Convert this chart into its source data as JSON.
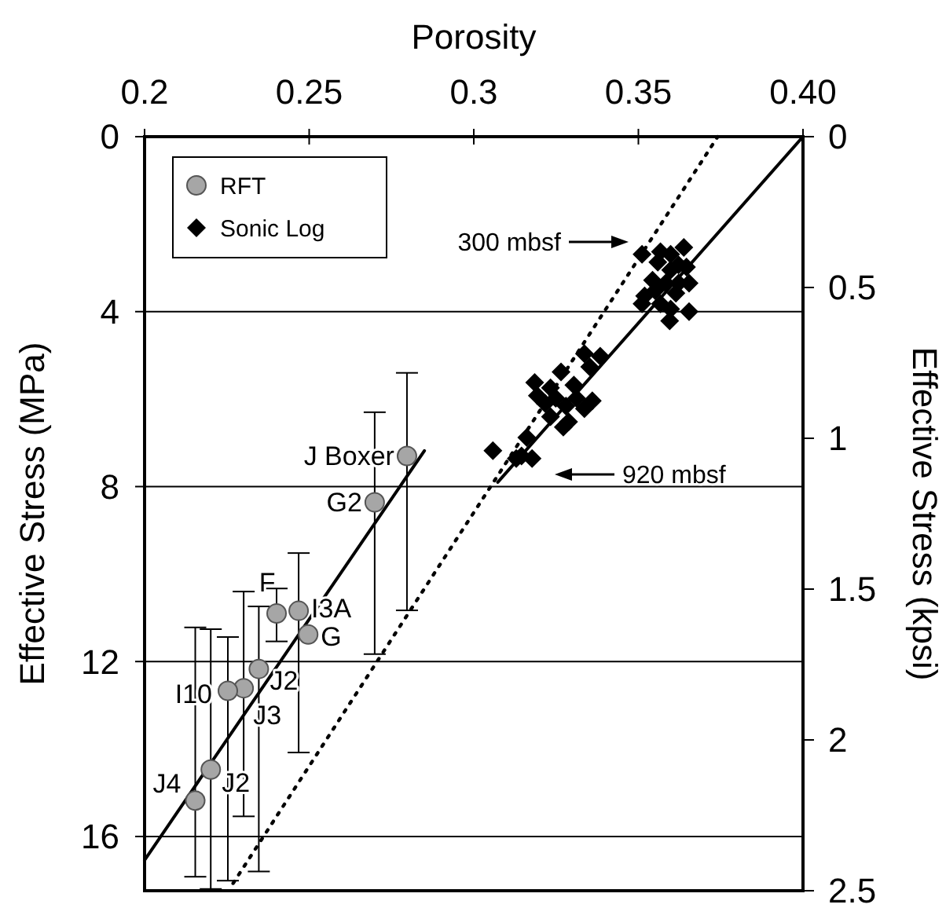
{
  "chart_data": {
    "type": "scatter",
    "xlabel": "Porosity",
    "ylabel": "Effective Stress (MPa)",
    "y2label": "Effective Stress (kpsi)",
    "xlim": [
      0.2,
      0.4
    ],
    "xticks": [
      0.2,
      0.25,
      0.3,
      0.35,
      {
        "value": 0.4,
        "label": "0.40"
      }
    ],
    "ylim": [
      17.24,
      0
    ],
    "yticks": [
      0,
      4,
      8,
      12,
      16
    ],
    "y2lim": [
      2.5,
      0
    ],
    "y2ticks": [
      0,
      0.5,
      1,
      1.5,
      2,
      2.5
    ],
    "grid": "y",
    "legend": "top left",
    "series": [
      {
        "name": "RFT",
        "marker": "circle",
        "color": "#a6a6a6",
        "x": [
          0.2797,
          0.2699,
          0.2401,
          0.2468,
          0.2497,
          0.2347,
          0.2301,
          0.2253,
          0.2154,
          0.2201
        ],
        "values": [
          7.3,
          8.36,
          10.9,
          10.84,
          11.38,
          12.17,
          12.61,
          12.67,
          15.18,
          14.47
        ],
        "errors": [
          [
            5.4,
            10.83
          ],
          [
            6.3,
            11.83
          ],
          [
            10.33,
            11.54
          ],
          [
            9.52,
            14.08
          ],
          null,
          [
            10.74,
            16.8
          ],
          [
            10.4,
            15.54
          ],
          [
            11.44,
            17.01
          ],
          [
            11.22,
            16.92
          ],
          [
            11.26,
            17.2
          ]
        ]
      },
      {
        "name": "Sonic Log",
        "marker": "diamond",
        "color": "#000000",
        "x": [
          0.3511,
          0.3567,
          0.3598,
          0.3638,
          0.3559,
          0.3598,
          0.3622,
          0.3646,
          0.3543,
          0.3583,
          0.3622,
          0.3654,
          0.3519,
          0.3551,
          0.3614,
          0.3511,
          0.3567,
          0.3598,
          0.3595,
          0.3654,
          0.3336,
          0.3384,
          0.3352,
          0.3265,
          0.3185,
          0.3233,
          0.3304,
          0.3193,
          0.3249,
          0.3312,
          0.336,
          0.3217,
          0.328,
          0.3336,
          0.3233,
          0.3288,
          0.3272,
          0.3161,
          0.3058,
          0.3129,
          0.3177,
          0.3145
        ],
        "values": [
          2.69,
          2.63,
          2.69,
          2.53,
          2.87,
          3.05,
          2.93,
          2.98,
          3.28,
          3.35,
          3.35,
          3.35,
          3.64,
          3.52,
          3.58,
          3.82,
          3.82,
          3.94,
          4.21,
          4.0,
          4.96,
          5.02,
          5.26,
          5.38,
          5.62,
          5.74,
          5.68,
          5.92,
          5.98,
          5.98,
          6.04,
          6.1,
          6.16,
          6.22,
          6.4,
          6.52,
          6.64,
          6.88,
          7.18,
          7.36,
          7.36,
          7.3
        ]
      },
      {
        "type": "line",
        "color": "#000000",
        "line_style": "solid",
        "x": [
          0.3073,
          0.4
        ],
        "values": [
          7.9,
          0
        ]
      },
      {
        "type": "line",
        "color": "#000000",
        "line_style": "solid",
        "x": [
          0.2,
          0.285
        ],
        "values": [
          16.54,
          7.18
        ]
      },
      {
        "type": "line",
        "color": "#000000",
        "line_style": "dotted",
        "x": [
          0.2269,
          0.3741
        ],
        "values": [
          17.07,
          0
        ]
      }
    ],
    "annotations": [
      {
        "text": "J Boxer",
        "x": 0.2797,
        "y": 7.3
      },
      {
        "text": "G2",
        "x": 0.2699,
        "y": 8.36
      },
      {
        "text": "F",
        "x": 0.2401,
        "y": 10.9
      },
      {
        "text": "I3A",
        "x": 0.2468,
        "y": 10.84
      },
      {
        "text": "G",
        "x": 0.2497,
        "y": 11.38
      },
      {
        "text": "J2",
        "x": 0.2347,
        "y": 12.17
      },
      {
        "text": "J3",
        "x": 0.2301,
        "y": 12.61
      },
      {
        "text": "I10",
        "x": 0.2253,
        "y": 12.67
      },
      {
        "text": "J4",
        "x": 0.2154,
        "y": 15.18
      },
      {
        "text": "J2",
        "x": 0.2201,
        "y": 14.47
      },
      "300 mbsf",
      "920 mbsf"
    ]
  }
}
